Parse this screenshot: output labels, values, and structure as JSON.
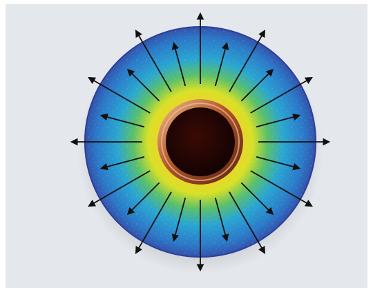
{
  "figure": {
    "background_color": "#e4e7eb",
    "frame_color": "#ffffff",
    "disk": {
      "gradient_stops": [
        {
          "offset": 0.0,
          "color": "#c8401c"
        },
        {
          "offset": 0.12,
          "color": "#e8741a"
        },
        {
          "offset": 0.3,
          "color": "#f4d02a"
        },
        {
          "offset": 0.45,
          "color": "#d8e028"
        },
        {
          "offset": 0.58,
          "color": "#5cc06a"
        },
        {
          "offset": 0.72,
          "color": "#2aa6d2"
        },
        {
          "offset": 0.9,
          "color": "#2c78c8"
        },
        {
          "offset": 1.0,
          "color": "#3450a8"
        }
      ],
      "edge_color": "#2c3f9a"
    },
    "core": {
      "rim_color": "#b0552a",
      "rim_highlight_color": "#f0c090",
      "center_color": "#120303"
    },
    "arrows": {
      "color": "#111111",
      "count": 24,
      "outer_arrow_count": 12,
      "icon": "arrow-icon",
      "direction": "radially-outward"
    }
  }
}
